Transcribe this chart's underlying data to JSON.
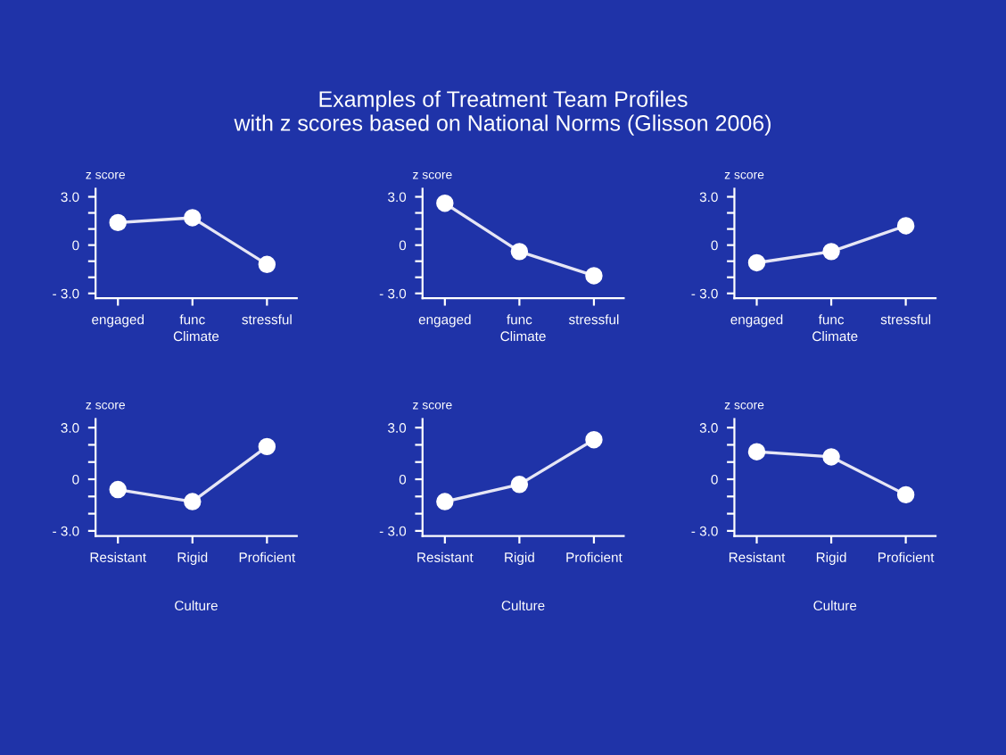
{
  "chart_data": [
    {
      "type": "line",
      "title": "Examples of Treatment Team Profiles\nwith z scores based on National Norms (Glisson 2006)",
      "categories": [
        "engaged",
        "func",
        "stressful"
      ],
      "values": [
        1.4,
        1.7,
        -1.2
      ],
      "color": "#e6e6f5",
      "marker": "circle",
      "xlabel": "Climate",
      "ylabel": "z score",
      "ylim": [
        -3.3,
        3.5
      ],
      "yticks": [
        {
          "value": -3,
          "label": "- 3.0"
        },
        {
          "value": -2,
          "label": null
        },
        {
          "value": -1,
          "label": null
        },
        0,
        {
          "value": 1,
          "label": null
        },
        {
          "value": 2,
          "label": null
        },
        {
          "value": 3,
          "label": "3.0"
        }
      ]
    },
    {
      "type": "line",
      "categories": [
        "engaged",
        "func",
        "stressful"
      ],
      "values": [
        2.6,
        -0.4,
        -1.9
      ],
      "color": "#e6e6f5",
      "marker": "circle",
      "xlabel": "Climate",
      "ylabel": "z score",
      "ylim": [
        -3.3,
        3.5
      ],
      "yticks": [
        {
          "value": -3,
          "label": "- 3.0"
        },
        {
          "value": -2,
          "label": null
        },
        {
          "value": -1,
          "label": null
        },
        0,
        {
          "value": 1,
          "label": null
        },
        {
          "value": 2,
          "label": null
        },
        {
          "value": 3,
          "label": "3.0"
        }
      ]
    },
    {
      "type": "line",
      "categories": [
        "engaged",
        "func",
        "stressful"
      ],
      "values": [
        -1.1,
        -0.4,
        1.2
      ],
      "color": "#e6e6f5",
      "marker": "circle",
      "xlabel": "Climate",
      "ylabel": "z score",
      "ylim": [
        -3.3,
        3.5
      ],
      "yticks": [
        {
          "value": -3,
          "label": "- 3.0"
        },
        {
          "value": -2,
          "label": null
        },
        {
          "value": -1,
          "label": null
        },
        0,
        {
          "value": 1,
          "label": null
        },
        {
          "value": 2,
          "label": null
        },
        {
          "value": 3,
          "label": "3.0"
        }
      ]
    },
    {
      "type": "line",
      "categories": [
        "Resistant",
        "Rigid",
        "Proficient"
      ],
      "values": [
        -0.6,
        -1.3,
        1.9
      ],
      "color": "#e6e6f5",
      "marker": "circle",
      "xlabel": "Culture",
      "ylabel": "z score",
      "ylim": [
        -3.3,
        3.5
      ],
      "yticks": [
        {
          "value": -3,
          "label": "- 3.0"
        },
        {
          "value": -2,
          "label": null
        },
        {
          "value": -1,
          "label": null
        },
        0,
        {
          "value": 1,
          "label": null
        },
        {
          "value": 2,
          "label": null
        },
        {
          "value": 3,
          "label": "3.0"
        }
      ]
    },
    {
      "type": "line",
      "categories": [
        "Resistant",
        "Rigid",
        "Proficient"
      ],
      "values": [
        -1.3,
        -0.3,
        2.3
      ],
      "color": "#e6e6f5",
      "marker": "circle",
      "xlabel": "Culture",
      "ylabel": "z score",
      "ylim": [
        -3.3,
        3.5
      ],
      "yticks": [
        {
          "value": -3,
          "label": "- 3.0"
        },
        {
          "value": -2,
          "label": null
        },
        {
          "value": -1,
          "label": null
        },
        0,
        {
          "value": 1,
          "label": null
        },
        {
          "value": 2,
          "label": null
        },
        {
          "value": 3,
          "label": "3.0"
        }
      ]
    },
    {
      "type": "line",
      "categories": [
        "Resistant",
        "Rigid",
        "Proficient"
      ],
      "values": [
        1.6,
        1.3,
        -0.9
      ],
      "color": "#e6e6f5",
      "marker": "circle",
      "xlabel": "Culture",
      "ylabel": "z score",
      "ylim": [
        -3.3,
        3.5
      ],
      "yticks": [
        {
          "value": -3,
          "label": "- 3.0"
        },
        {
          "value": -2,
          "label": null
        },
        {
          "value": -1,
          "label": null
        },
        0,
        {
          "value": 1,
          "label": null
        },
        {
          "value": 2,
          "label": null
        },
        {
          "value": 3,
          "label": "3.0"
        }
      ]
    }
  ]
}
